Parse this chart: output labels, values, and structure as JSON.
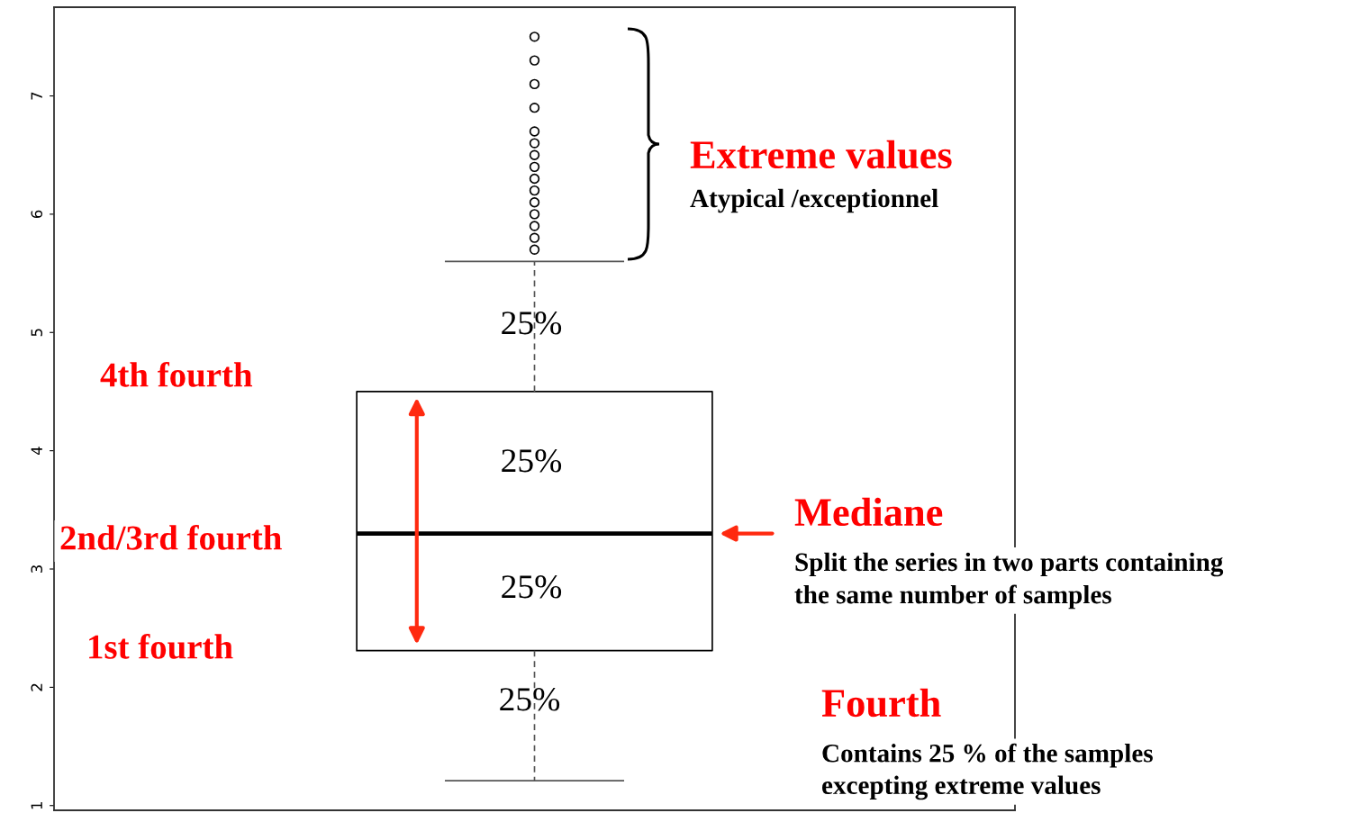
{
  "chart_data": {
    "type": "box",
    "categories": [
      null
    ],
    "boxes": [
      {
        "low": 1.21,
        "q1": 2.31,
        "median": 3.3,
        "q3": 4.5,
        "high": 5.6,
        "outliers": [
          7.5,
          7.3,
          7.1,
          6.9,
          6.7,
          6.6,
          6.5,
          6.4,
          6.3,
          6.2,
          6.1,
          6.0,
          5.9,
          5.8,
          5.7
        ]
      }
    ],
    "ylim": [
      0.96,
      7.75
    ],
    "yticks": [
      1,
      2,
      3,
      4,
      5,
      6,
      7
    ],
    "grid": false,
    "annotations": [
      "Extreme values",
      "Atypical /exceptionnel",
      "25%",
      "25%",
      "25%",
      "25%",
      "4th fourth",
      "2nd/3rd fourth",
      "1st fourth",
      "Mediane",
      "Split the series in two parts containing\nthe same number of samples",
      "Fourth",
      "Contains 25 % of the samples\nexcepting extreme values"
    ]
  }
}
